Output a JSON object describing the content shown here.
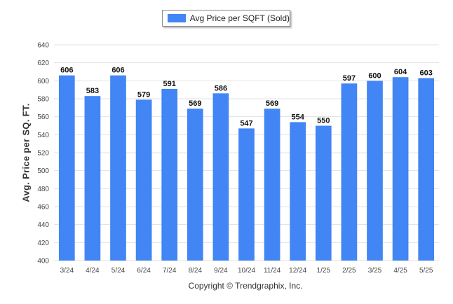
{
  "chart_data": {
    "type": "bar",
    "title": "",
    "xlabel": "",
    "ylabel": "Avg. Price per SQ. FT.",
    "categories": [
      "3/24",
      "4/24",
      "5/24",
      "6/24",
      "7/24",
      "8/24",
      "9/24",
      "10/24",
      "11/24",
      "12/24",
      "1/25",
      "2/25",
      "3/25",
      "4/25",
      "5/25"
    ],
    "series": [
      {
        "name": "Avg Price per SQFT (Sold)",
        "values": [
          606,
          583,
          606,
          579,
          591,
          569,
          586,
          547,
          569,
          554,
          550,
          597,
          600,
          604,
          603
        ],
        "color": "#4285f4"
      }
    ],
    "ylim": [
      400,
      640
    ],
    "yticks": [
      400,
      420,
      440,
      460,
      480,
      500,
      520,
      540,
      560,
      580,
      600,
      620,
      640
    ],
    "grid": true,
    "data_labels": true,
    "legend_position": "top-center"
  },
  "footer": {
    "copyright": "Copyright © Trendgraphix, Inc."
  }
}
